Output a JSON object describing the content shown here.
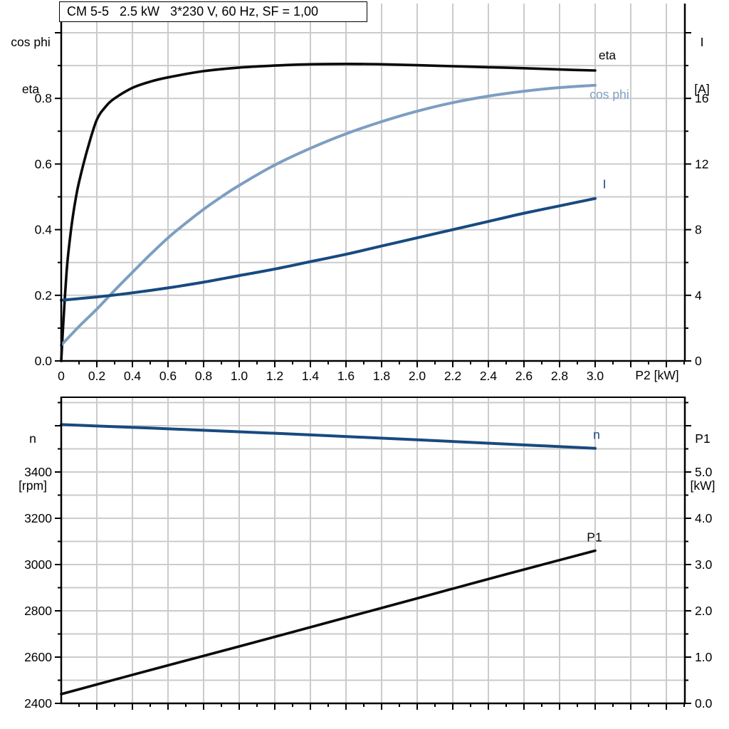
{
  "title_box": {
    "text": "CM 5-5   2.5 kW   3*230 V, 60 Hz, SF = 1,00"
  },
  "colors": {
    "curve_black": "#0a0a0a",
    "curve_dark_blue": "#174a80",
    "curve_light_blue": "#7d9ec2",
    "grid": "#cbcbcb",
    "axis": "#000000",
    "background": "#ffffff"
  },
  "axis_corner_labels": {
    "top_left_line1": "cos phi",
    "top_left_line2": "eta",
    "top_right_line1": "I",
    "top_right_line2": "[A]",
    "bottom_left_line1": "n",
    "bottom_left_line2": "[rpm]",
    "bottom_right_line1": "P1",
    "bottom_right_line2": "[kW]",
    "x_axis_label": "P2 [kW]"
  },
  "chart_data": [
    {
      "type": "line",
      "title": "CM 5-5   2.5 kW   3*230 V, 60 Hz, SF = 1,00",
      "xlabel": "P2 [kW]",
      "x_range": [
        0,
        3.5
      ],
      "x_tick_labels": [
        "0",
        "0.2",
        "0.4",
        "0.6",
        "0.8",
        "1.0",
        "1.2",
        "1.4",
        "1.6",
        "1.8",
        "2.0",
        "2.2",
        "2.4",
        "2.6",
        "2.8",
        "3.0"
      ],
      "x_minor_step": 0.1,
      "x_major_step": 0.2,
      "grid": "on",
      "left_axis": {
        "label": "cos phi / eta",
        "range": [
          0,
          1.089
        ],
        "tick_labels": [
          "0.0",
          "0.2",
          "0.4",
          "0.6",
          "0.8"
        ],
        "major_step": 0.2,
        "minor_step": 0.1
      },
      "right_axis": {
        "label": "I [A]",
        "range": [
          0,
          21.8
        ],
        "tick_labels": [
          "0",
          "4",
          "8",
          "12",
          "16"
        ],
        "major_step": 4,
        "minor_step": 2
      },
      "series": [
        {
          "name": "eta",
          "label": "eta",
          "axis": "left",
          "color_key": "curve_black",
          "width": 3.6,
          "x": [
            0,
            0.01,
            0.02,
            0.03,
            0.04,
            0.06,
            0.08,
            0.1,
            0.15,
            0.2,
            0.25,
            0.3,
            0.4,
            0.5,
            0.6,
            0.8,
            1.0,
            1.2,
            1.4,
            1.6,
            1.8,
            2.0,
            2.2,
            2.4,
            2.6,
            2.8,
            3.0
          ],
          "y": [
            0,
            0.1,
            0.19,
            0.27,
            0.33,
            0.42,
            0.49,
            0.545,
            0.65,
            0.735,
            0.775,
            0.8,
            0.832,
            0.851,
            0.864,
            0.883,
            0.894,
            0.9,
            0.904,
            0.905,
            0.904,
            0.901,
            0.898,
            0.895,
            0.892,
            0.888,
            0.885
          ]
        },
        {
          "name": "cos phi",
          "label": "cos phi",
          "axis": "left",
          "color_key": "curve_light_blue",
          "width": 4,
          "x": [
            0,
            0.1,
            0.2,
            0.3,
            0.4,
            0.5,
            0.6,
            0.7,
            0.8,
            0.9,
            1.0,
            1.2,
            1.4,
            1.6,
            1.8,
            2.0,
            2.2,
            2.4,
            2.6,
            2.8,
            3.0
          ],
          "y": [
            0.048,
            0.105,
            0.158,
            0.215,
            0.27,
            0.324,
            0.375,
            0.42,
            0.462,
            0.5,
            0.535,
            0.597,
            0.648,
            0.692,
            0.729,
            0.761,
            0.787,
            0.807,
            0.822,
            0.833,
            0.84
          ]
        },
        {
          "name": "I",
          "label": "I",
          "axis": "right",
          "color_key": "curve_dark_blue",
          "width": 4,
          "x": [
            0,
            0.2,
            0.4,
            0.6,
            0.8,
            1.0,
            1.2,
            1.4,
            1.6,
            1.8,
            2.0,
            2.2,
            2.4,
            2.6,
            2.8,
            3.0
          ],
          "y": [
            3.7,
            3.9,
            4.15,
            4.45,
            4.8,
            5.2,
            5.6,
            6.05,
            6.5,
            7.0,
            7.5,
            8.0,
            8.5,
            9.0,
            9.45,
            9.9
          ]
        }
      ]
    },
    {
      "type": "line",
      "title": "",
      "xlabel": "",
      "x_range": [
        0,
        3.5
      ],
      "x_tick_labels": [],
      "x_minor_step": 0.1,
      "x_major_step": 0.2,
      "grid": "on",
      "left_axis": {
        "label": "n [rpm]",
        "range": [
          2400,
          3723
        ],
        "tick_labels": [
          "2400",
          "2600",
          "2800",
          "3000",
          "3200",
          "3400"
        ],
        "major_step": 200,
        "minor_step": 100
      },
      "right_axis": {
        "label": "P1 [kW]",
        "range": [
          0,
          6.615
        ],
        "tick_labels": [
          "0.0",
          "1.0",
          "2.0",
          "3.0",
          "4.0",
          "5.0"
        ],
        "major_step": 1,
        "minor_step": 0.5
      },
      "series": [
        {
          "name": "n",
          "label": "n",
          "axis": "left",
          "color_key": "curve_dark_blue",
          "width": 4,
          "x": [
            0,
            0.5,
            1.0,
            1.5,
            2.0,
            2.5,
            3.0
          ],
          "y": [
            3605,
            3590,
            3574,
            3557,
            3539,
            3521,
            3502
          ]
        },
        {
          "name": "P1",
          "label": "P1",
          "axis": "right",
          "color_key": "curve_black",
          "width": 3.6,
          "x": [
            0,
            0.5,
            1.0,
            1.5,
            2.0,
            2.5,
            3.0
          ],
          "y": [
            0.2,
            0.72,
            1.23,
            1.75,
            2.27,
            2.79,
            3.3
          ]
        }
      ]
    }
  ]
}
